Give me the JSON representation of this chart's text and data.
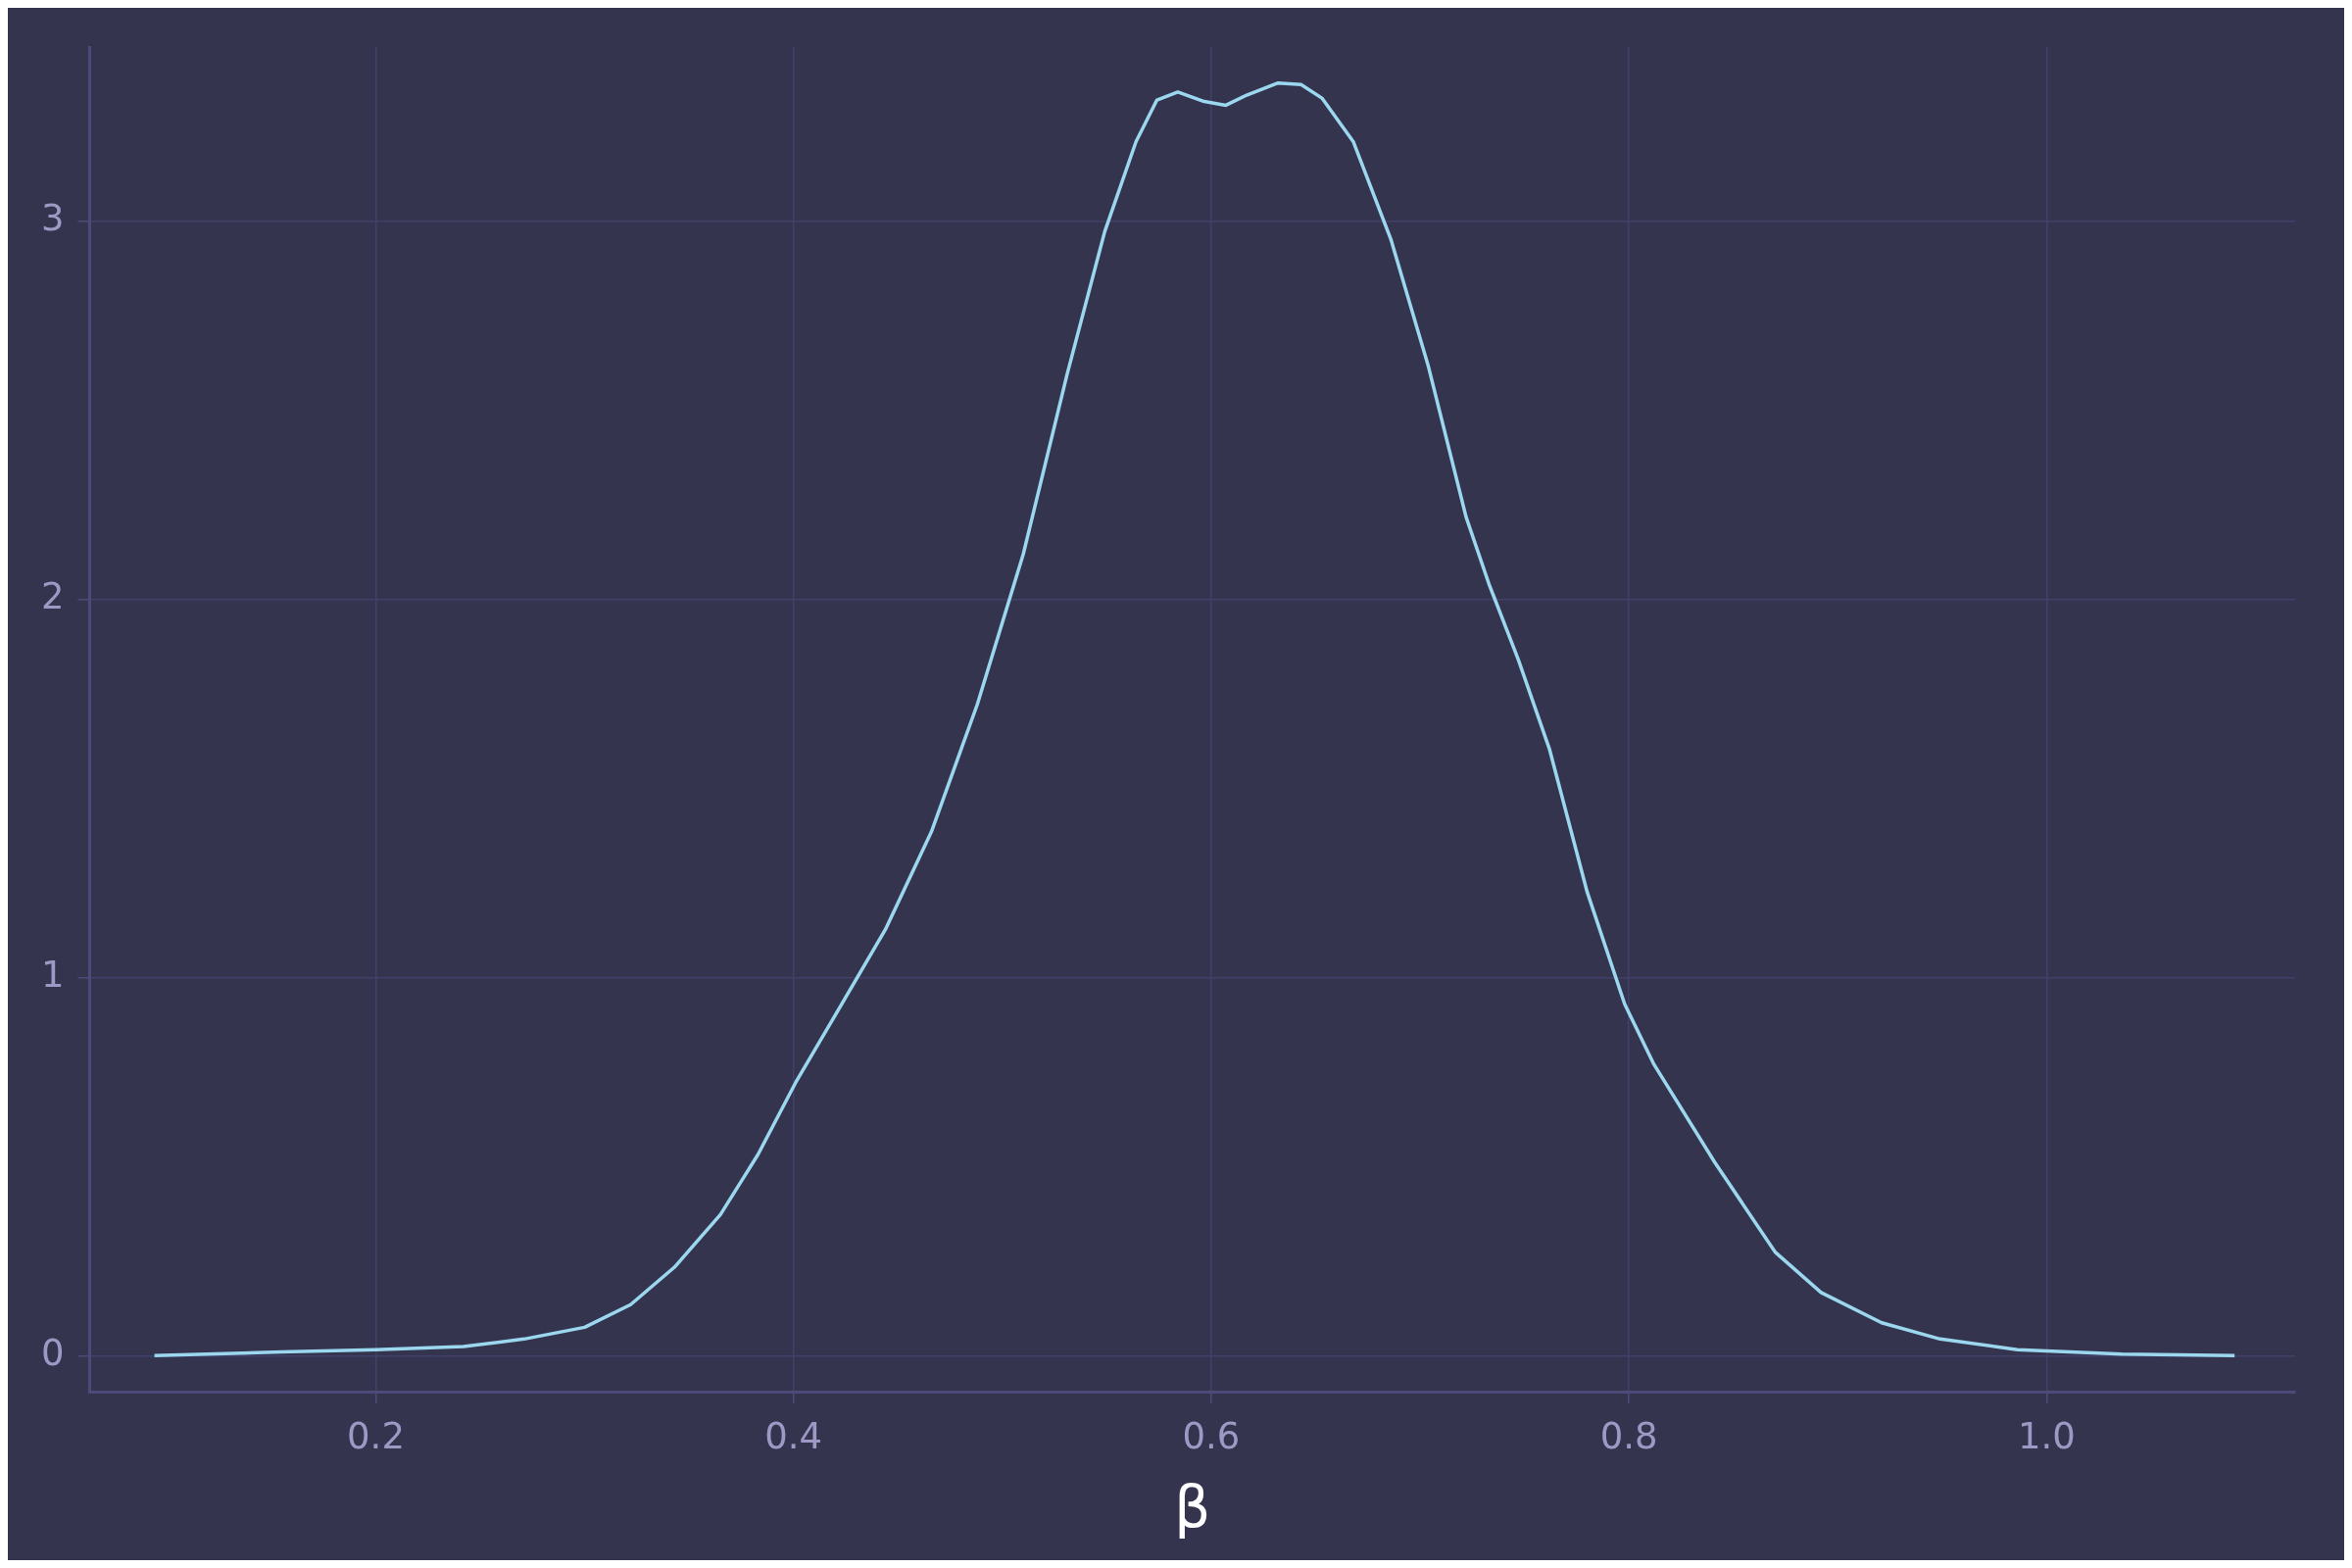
{
  "chart_data": {
    "type": "line",
    "xlabel": "β",
    "xlim": [
      0.063,
      1.119
    ],
    "ylim": [
      -0.095,
      3.46
    ],
    "xticks": [
      0.2,
      0.4,
      0.6,
      0.8,
      {
        "value": 1.0,
        "label": "1.0"
      }
    ],
    "yticks": [
      0,
      1,
      2,
      3
    ],
    "grid": true,
    "legend": false,
    "marker": "none",
    "line_style": "solid",
    "series": [
      {
        "color": "#9bd7ee",
        "x": [
          0.094,
          0.155,
          0.2,
          0.242,
          0.271,
          0.3,
          0.322,
          0.343,
          0.365,
          0.383,
          0.401,
          0.423,
          0.444,
          0.466,
          0.488,
          0.51,
          0.531,
          0.549,
          0.564,
          0.574,
          0.584,
          0.596,
          0.607,
          0.617,
          0.632,
          0.643,
          0.653,
          0.668,
          0.686,
          0.704,
          0.722,
          0.733,
          0.747,
          0.762,
          0.78,
          0.798,
          0.812,
          0.841,
          0.87,
          0.892,
          0.921,
          0.949,
          0.986,
          1.036,
          1.09
        ],
        "values": [
          0,
          0.01,
          0.016,
          0.024,
          0.044,
          0.075,
          0.135,
          0.234,
          0.373,
          0.532,
          0.722,
          0.929,
          1.127,
          1.385,
          1.722,
          2.119,
          2.595,
          2.972,
          3.21,
          3.32,
          3.341,
          3.317,
          3.306,
          3.333,
          3.365,
          3.361,
          3.325,
          3.21,
          2.952,
          2.615,
          2.218,
          2.04,
          1.841,
          1.603,
          1.226,
          0.929,
          0.77,
          0.512,
          0.274,
          0.167,
          0.087,
          0.044,
          0.016,
          0.004,
          0
        ]
      }
    ]
  }
}
